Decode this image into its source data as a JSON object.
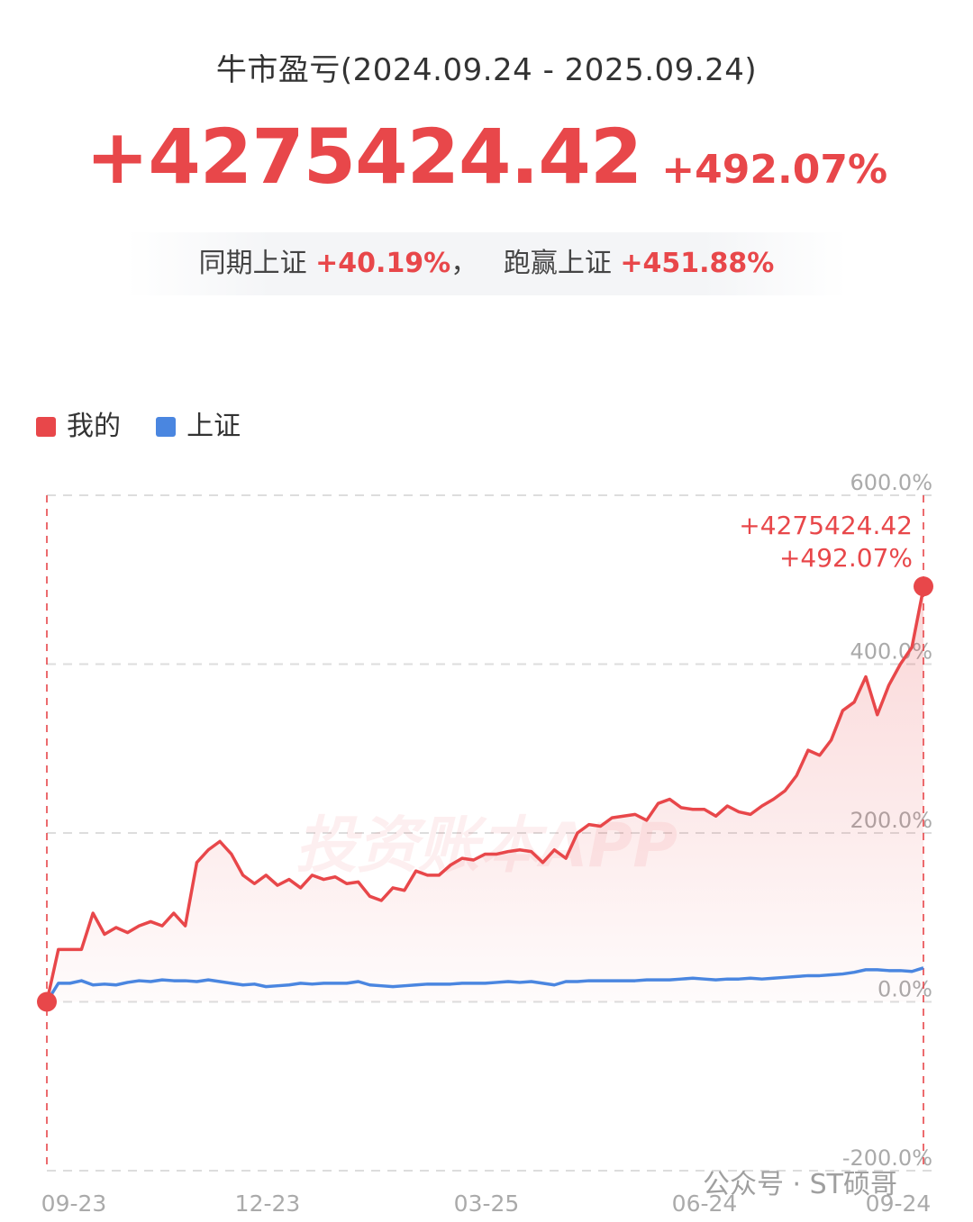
{
  "title": "牛市盈亏(2024.09.24 - 2025.09.24)",
  "headline": {
    "amount": "+4275424.42",
    "percent": "+492.07%"
  },
  "comparison": {
    "label1": "同期上证",
    "value1": "+40.19%",
    "separator": "，",
    "label2": "跑赢上证",
    "value2": "+451.88%"
  },
  "colors": {
    "mine": "#e8474a",
    "index": "#4a86e0",
    "grid": "#dddddd",
    "tick": "#aaaaaa"
  },
  "watermark": "投资账本APP",
  "footer_watermark": "公众号 · ST硕哥",
  "chart_data": {
    "type": "line",
    "x_ticks": [
      "09-23",
      "12-23",
      "03-25",
      "06-24",
      "09-24"
    ],
    "y_ticks": [
      "600.0%",
      "400.0%",
      "200.0%",
      "0.0%",
      "-200.0%"
    ],
    "ylim": [
      -200,
      600
    ],
    "y_unit": "%",
    "grid": true,
    "legend_position": "top-left",
    "series": [
      {
        "name": "我的",
        "color": "#e8474a",
        "values": [
          0,
          62,
          62,
          62,
          105,
          80,
          88,
          82,
          90,
          95,
          90,
          105,
          90,
          165,
          180,
          190,
          175,
          150,
          140,
          150,
          138,
          145,
          135,
          150,
          145,
          148,
          140,
          142,
          125,
          120,
          135,
          132,
          155,
          150,
          150,
          162,
          170,
          168,
          175,
          175,
          178,
          180,
          178,
          165,
          180,
          170,
          200,
          210,
          208,
          218,
          220,
          222,
          215,
          235,
          240,
          230,
          228,
          228,
          220,
          232,
          225,
          222,
          232,
          240,
          250,
          268,
          298,
          292,
          310,
          345,
          355,
          385,
          340,
          375,
          400,
          420,
          490
        ]
      },
      {
        "name": "上证",
        "color": "#4a86e0",
        "values": [
          0,
          22,
          22,
          25,
          20,
          21,
          20,
          23,
          25,
          24,
          26,
          25,
          25,
          24,
          26,
          24,
          22,
          20,
          21,
          18,
          19,
          20,
          22,
          21,
          22,
          22,
          22,
          24,
          20,
          19,
          18,
          19,
          20,
          21,
          21,
          21,
          22,
          22,
          22,
          23,
          24,
          23,
          24,
          22,
          20,
          24,
          24,
          25,
          25,
          25,
          25,
          25,
          26,
          26,
          26,
          27,
          28,
          27,
          26,
          27,
          27,
          28,
          27,
          28,
          29,
          30,
          31,
          31,
          32,
          33,
          35,
          38,
          38,
          37,
          37,
          36,
          40.19
        ]
      }
    ],
    "end_annotation": {
      "amount": "+4275424.42",
      "percent": "+492.07%"
    }
  }
}
